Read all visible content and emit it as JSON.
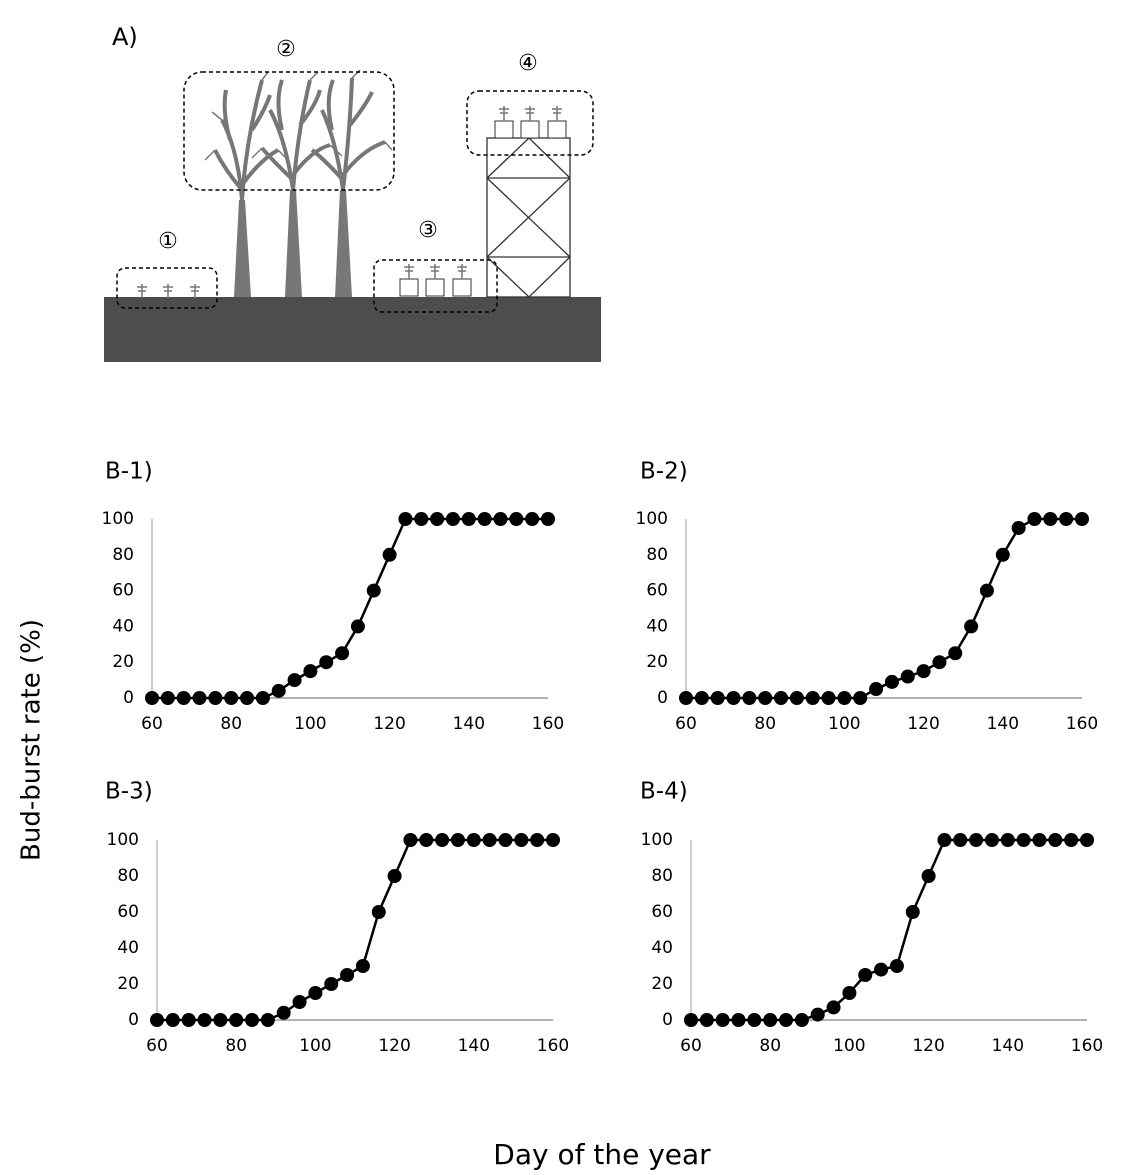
{
  "diagram": {
    "label": "A)",
    "markers": [
      "①",
      "②",
      "③",
      "④"
    ]
  },
  "y_label": "Bud-burst rate (%)",
  "x_label": "Day of the year",
  "chart_data": [
    {
      "type": "line",
      "title": "B-1)",
      "color": "#000000",
      "x": [
        60,
        64,
        68,
        72,
        76,
        80,
        84,
        88,
        92,
        96,
        100,
        104,
        108,
        112,
        116,
        120,
        124,
        128,
        132,
        136,
        140,
        144,
        148,
        152,
        156,
        160
      ],
      "values": [
        0,
        0,
        0,
        0,
        0,
        0,
        0,
        0,
        4,
        10,
        15,
        20,
        25,
        40,
        60,
        80,
        100,
        100,
        100,
        100,
        100,
        100,
        100,
        100,
        100,
        100
      ],
      "xlim": [
        60,
        160
      ],
      "xticks": [
        60,
        80,
        100,
        120,
        140,
        160
      ],
      "ylim": [
        0,
        100
      ],
      "yticks": [
        0,
        20,
        40,
        60,
        80,
        100
      ]
    },
    {
      "type": "line",
      "title": "B-2)",
      "color": "#000000",
      "x": [
        60,
        64,
        68,
        72,
        76,
        80,
        84,
        88,
        92,
        96,
        100,
        104,
        108,
        112,
        116,
        120,
        124,
        128,
        132,
        136,
        140,
        144,
        148,
        152,
        156,
        160
      ],
      "values": [
        0,
        0,
        0,
        0,
        0,
        0,
        0,
        0,
        0,
        0,
        0,
        0,
        5,
        9,
        12,
        15,
        20,
        25,
        40,
        60,
        80,
        95,
        100,
        100,
        100,
        100
      ],
      "xlim": [
        60,
        160
      ],
      "xticks": [
        60,
        80,
        100,
        120,
        140,
        160
      ],
      "ylim": [
        0,
        100
      ],
      "yticks": [
        0,
        20,
        40,
        60,
        80,
        100
      ]
    },
    {
      "type": "line",
      "title": "B-3)",
      "color": "#000000",
      "x": [
        60,
        64,
        68,
        72,
        76,
        80,
        84,
        88,
        92,
        96,
        100,
        104,
        108,
        112,
        116,
        120,
        124,
        128,
        132,
        136,
        140,
        144,
        148,
        152,
        156,
        160
      ],
      "values": [
        0,
        0,
        0,
        0,
        0,
        0,
        0,
        0,
        4,
        10,
        15,
        20,
        25,
        30,
        60,
        80,
        100,
        100,
        100,
        100,
        100,
        100,
        100,
        100,
        100,
        100
      ],
      "xlim": [
        60,
        160
      ],
      "xticks": [
        60,
        80,
        100,
        120,
        140,
        160
      ],
      "ylim": [
        0,
        100
      ],
      "yticks": [
        0,
        20,
        40,
        60,
        80,
        100
      ]
    },
    {
      "type": "line",
      "title": "B-4)",
      "color": "#000000",
      "x": [
        60,
        64,
        68,
        72,
        76,
        80,
        84,
        88,
        92,
        96,
        100,
        104,
        108,
        112,
        116,
        120,
        124,
        128,
        132,
        136,
        140,
        144,
        148,
        152,
        156,
        160
      ],
      "values": [
        0,
        0,
        0,
        0,
        0,
        0,
        0,
        0,
        3,
        7,
        15,
        25,
        28,
        30,
        60,
        80,
        100,
        100,
        100,
        100,
        100,
        100,
        100,
        100,
        100,
        100
      ],
      "xlim": [
        60,
        160
      ],
      "xticks": [
        60,
        80,
        100,
        120,
        140,
        160
      ],
      "ylim": [
        0,
        100
      ],
      "yticks": [
        0,
        20,
        40,
        60,
        80,
        100
      ]
    }
  ]
}
